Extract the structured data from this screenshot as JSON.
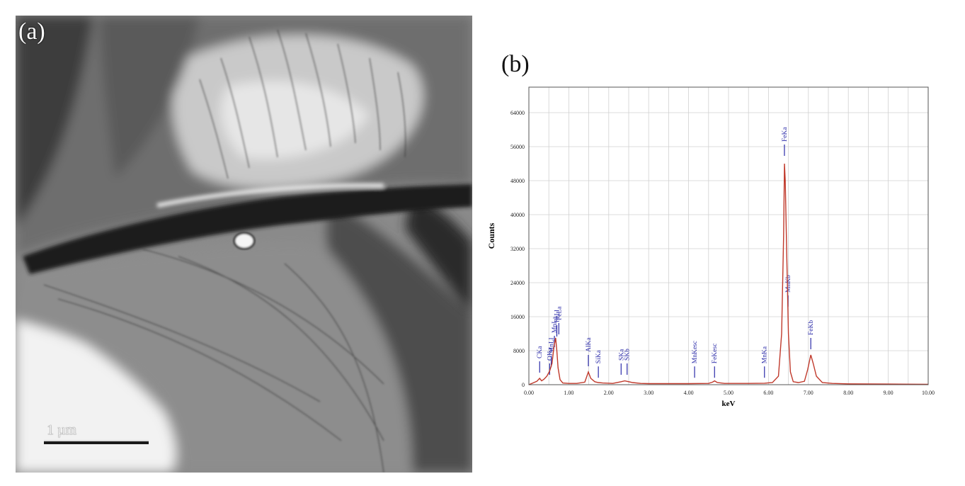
{
  "panel_a": {
    "label": "(a)",
    "scale_bar_label": "1 µm"
  },
  "panel_b": {
    "label": "(b)"
  },
  "chart_data": {
    "type": "line",
    "xlabel": "keV",
    "ylabel": "Counts",
    "xlim": [
      0,
      10
    ],
    "ylim": [
      0,
      70000
    ],
    "x_ticks": [
      0,
      1,
      2,
      3,
      4,
      5,
      6,
      7,
      8,
      9,
      10
    ],
    "x_tick_labels": [
      "0.00",
      "1.00",
      "2.00",
      "3.00",
      "4.00",
      "5.00",
      "6.00",
      "7.00",
      "8.00",
      "9.00",
      "10.00"
    ],
    "y_ticks": [
      0,
      8000,
      16000,
      24000,
      32000,
      40000,
      48000,
      56000,
      64000
    ],
    "y_tick_labels": [
      "0",
      "8000",
      "16000",
      "24000",
      "32000",
      "40000",
      "48000",
      "56000",
      "64000"
    ],
    "grid": true,
    "line_color": "#c0392b",
    "marker_color": "#2a2aa8",
    "spectrum": {
      "x": [
        0.0,
        0.1,
        0.2,
        0.27,
        0.32,
        0.38,
        0.45,
        0.52,
        0.58,
        0.63,
        0.67,
        0.7,
        0.73,
        0.78,
        0.85,
        1.0,
        1.2,
        1.4,
        1.49,
        1.55,
        1.65,
        1.74,
        1.85,
        2.1,
        2.31,
        2.4,
        2.6,
        2.8,
        3.0,
        3.5,
        4.0,
        4.5,
        4.6,
        4.65,
        4.72,
        4.9,
        5.5,
        5.9,
        6.1,
        6.25,
        6.33,
        6.38,
        6.4,
        6.42,
        6.46,
        6.5,
        6.55,
        6.62,
        6.75,
        6.9,
        6.98,
        7.06,
        7.12,
        7.2,
        7.35,
        7.6,
        8.0,
        9.0,
        10.0
      ],
      "y": [
        0,
        400,
        800,
        1500,
        900,
        1300,
        2000,
        3200,
        5000,
        9000,
        11000,
        8000,
        4000,
        1200,
        400,
        300,
        300,
        600,
        3000,
        1500,
        700,
        500,
        400,
        300,
        700,
        900,
        500,
        300,
        250,
        250,
        250,
        300,
        600,
        900,
        500,
        300,
        300,
        350,
        500,
        2000,
        12000,
        35000,
        52000,
        48000,
        30000,
        12000,
        3000,
        700,
        500,
        800,
        3500,
        7000,
        5000,
        2000,
        500,
        300,
        200,
        150,
        100
      ]
    },
    "peak_labels": [
      {
        "label": "CKa",
        "x": 0.27,
        "y": 2500
      },
      {
        "label": "OKa",
        "x": 0.52,
        "y": 2000
      },
      {
        "label": "MnLl",
        "x": 0.56,
        "y": 3800
      },
      {
        "label": "MnLa",
        "x": 0.64,
        "y": 8500
      },
      {
        "label": "FeLl",
        "x": 0.7,
        "y": 11000
      },
      {
        "label": "FeLa",
        "x": 0.75,
        "y": 11500
      },
      {
        "label": "AlKa",
        "x": 1.49,
        "y": 4000
      },
      {
        "label": "SiKa",
        "x": 1.74,
        "y": 1300
      },
      {
        "label": "SKa",
        "x": 2.31,
        "y": 2000
      },
      {
        "label": "SKb",
        "x": 2.46,
        "y": 2000
      },
      {
        "label": "MnKesc",
        "x": 4.15,
        "y": 1300
      },
      {
        "label": "FeKesc",
        "x": 4.65,
        "y": 1300
      },
      {
        "label": "MnKa",
        "x": 5.9,
        "y": 1300
      },
      {
        "label": "FeKa",
        "x": 6.4,
        "y": 53500
      },
      {
        "label": "MnKb",
        "x": 6.49,
        "y": 18000
      },
      {
        "label": "FeKb",
        "x": 7.06,
        "y": 8000
      }
    ]
  }
}
